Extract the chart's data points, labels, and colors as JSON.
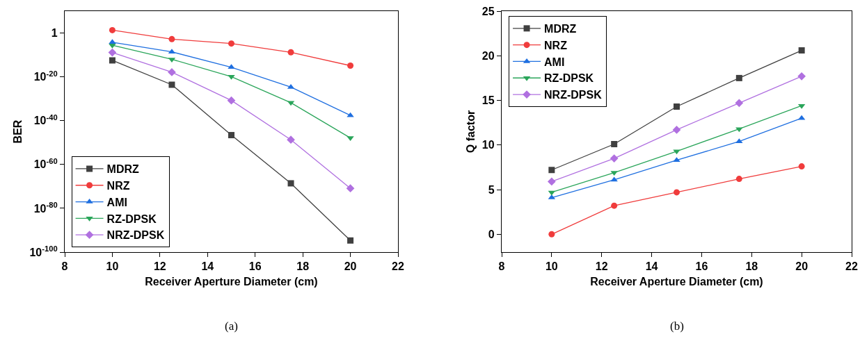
{
  "chart_data": [
    {
      "type": "line",
      "xlabel": "Receiver Aperture Diameter (cm)",
      "ylabel": "BER",
      "log": "y",
      "x": [
        10,
        12.5,
        15,
        17.5,
        20
      ],
      "xlim": [
        8,
        22
      ],
      "xticks": [
        8,
        10,
        12,
        14,
        16,
        18,
        20,
        22
      ],
      "ylim": [
        1e-100,
        10000000000.0
      ],
      "yticks": [
        {
          "value": 1,
          "label": "1"
        },
        {
          "value": 1e-20,
          "label": "10$^{-20}$"
        },
        {
          "value": 1e-40,
          "label": "10$^{-40}$"
        },
        {
          "value": 1e-60,
          "label": "10$^{-60}$"
        },
        {
          "value": 1e-80,
          "label": "10$^{-80}$"
        },
        {
          "value": 1e-100,
          "label": "10$^{-100}$"
        }
      ],
      "legend": "bottom left",
      "annotations": [
        "(a)"
      ],
      "series": [
        {
          "name": "MDRZ",
          "color": "#404040",
          "marker": "square",
          "values": [
            3.2e-13,
            2.5e-24,
            2.5e-47,
            2.5e-69,
            2e-95
          ]
        },
        {
          "name": "NRZ",
          "color": "#f03c3c",
          "marker": "circle",
          "values": [
            20,
            0.0016,
            1.6e-05,
            1.6e-09,
            1.3e-15
          ]
        },
        {
          "name": "AMI",
          "color": "#1f6fe0",
          "marker": "triangle",
          "values": [
            6.3e-05,
            2.5e-09,
            2.5e-16,
            2e-25,
            2.5e-38
          ]
        },
        {
          "name": "RZ-DPSK",
          "color": "#2aa55a",
          "marker": "triangle-down",
          "values": [
            2.5e-06,
            1e-12,
            1.3e-20,
            1.6e-32,
            1.3e-48
          ]
        },
        {
          "name": "NRZ-DPSK",
          "color": "#b070e0",
          "marker": "diamond",
          "values": [
            1.3e-09,
            1.3e-18,
            1.6e-31,
            2e-49,
            1.3e-71
          ]
        }
      ]
    },
    {
      "type": "line",
      "xlabel": "Receiver Aperture Diameter (cm)",
      "ylabel": "Q factor",
      "x": [
        10,
        12.5,
        15,
        17.5,
        20
      ],
      "xlim": [
        8,
        22
      ],
      "xticks": [
        8,
        10,
        12,
        14,
        16,
        18,
        20,
        22
      ],
      "ylim": [
        -2,
        25
      ],
      "yticks": [
        0,
        5,
        10,
        15,
        20,
        25
      ],
      "legend": "top left",
      "annotations": [
        "(b)"
      ],
      "series": [
        {
          "name": "MDRZ",
          "color": "#404040",
          "marker": "square",
          "values": [
            7.2,
            10.1,
            14.3,
            17.5,
            20.6
          ]
        },
        {
          "name": "NRZ",
          "color": "#f03c3c",
          "marker": "circle",
          "values": [
            0,
            3.2,
            4.7,
            6.2,
            7.6
          ]
        },
        {
          "name": "AMI",
          "color": "#1f6fe0",
          "marker": "triangle",
          "values": [
            4.1,
            6.1,
            8.3,
            10.4,
            13.0
          ]
        },
        {
          "name": "RZ-DPSK",
          "color": "#2aa55a",
          "marker": "triangle-down",
          "values": [
            4.7,
            6.9,
            9.3,
            11.8,
            14.4
          ]
        },
        {
          "name": "NRZ-DPSK",
          "color": "#b070e0",
          "marker": "diamond",
          "values": [
            5.9,
            8.5,
            11.7,
            14.7,
            17.7
          ]
        }
      ]
    }
  ]
}
